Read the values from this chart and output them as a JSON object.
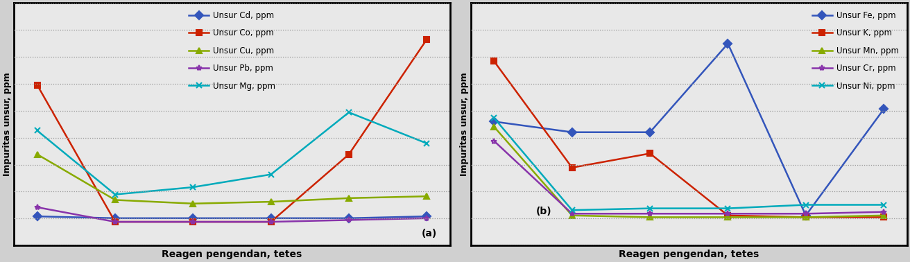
{
  "x": [
    0,
    1,
    2,
    3,
    4,
    5
  ],
  "panel_a": {
    "Cd": [
      0.08,
      0.07,
      0.07,
      0.07,
      0.07,
      0.08
    ],
    "Co": [
      0.8,
      0.05,
      0.05,
      0.05,
      0.42,
      1.05
    ],
    "Cu": [
      0.42,
      0.17,
      0.15,
      0.16,
      0.18,
      0.19
    ],
    "Pb": [
      0.13,
      0.05,
      0.05,
      0.05,
      0.06,
      0.07
    ],
    "Mg": [
      0.55,
      0.2,
      0.24,
      0.31,
      0.65,
      0.48
    ]
  },
  "panel_b": {
    "Fe": [
      0.58,
      0.52,
      0.52,
      1.02,
      0.05,
      0.65
    ],
    "K": [
      0.92,
      0.32,
      0.4,
      0.05,
      0.04,
      0.04
    ],
    "Mn": [
      0.55,
      0.05,
      0.04,
      0.04,
      0.04,
      0.05
    ],
    "Cr": [
      0.47,
      0.06,
      0.06,
      0.06,
      0.06,
      0.07
    ],
    "Ni": [
      0.6,
      0.08,
      0.09,
      0.09,
      0.11,
      0.11
    ]
  },
  "colors_a": {
    "Cd": "#3355bb",
    "Co": "#cc2200",
    "Cu": "#88aa00",
    "Pb": "#8833aa",
    "Mg": "#00aabb"
  },
  "colors_b": {
    "Fe": "#3355bb",
    "K": "#cc2200",
    "Mn": "#88aa00",
    "Cr": "#8833aa",
    "Ni": "#00aabb"
  },
  "ylabel": "Impuritas unsur, ppm",
  "xlabel": "Reagen pengendan, tetes",
  "bg_color": "#e8e8e8",
  "grid_color": "#999999"
}
